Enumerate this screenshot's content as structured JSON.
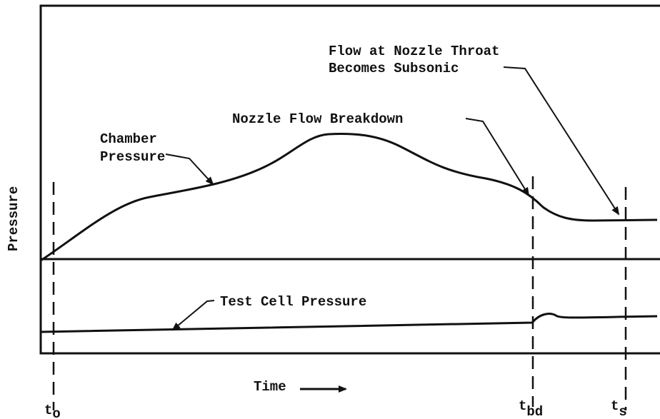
{
  "axes": {
    "y_label": "Pressure",
    "x_label": "Time"
  },
  "annotations": {
    "throat": [
      "Flow at Nozzle Throat",
      "Becomes Subsonic"
    ],
    "breakdown": "Nozzle Flow Breakdown",
    "chamber": [
      "Chamber",
      "Pressure"
    ],
    "test_cell": "Test Cell Pressure"
  },
  "time_marks": [
    {
      "symbol": "t",
      "subscript": "o"
    },
    {
      "symbol": "t",
      "subscript": "bd"
    },
    {
      "symbol": "t",
      "subscript": "s"
    }
  ]
}
